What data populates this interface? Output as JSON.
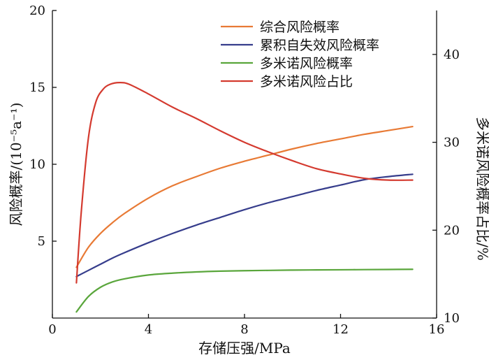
{
  "chart_data": {
    "type": "line",
    "title": "",
    "xlabel": "存储压强/MPa",
    "ylabel_left": "风险概率/(10⁻⁵a⁻¹)",
    "ylabel_right": "多米诺风险概率占比/%",
    "xlim": [
      0,
      16
    ],
    "ylim_left": [
      0,
      20
    ],
    "ylim_right": [
      10,
      45
    ],
    "x_ticks": [
      "0",
      "4",
      "8",
      "12",
      "16"
    ],
    "y_left_ticks": [
      "5",
      "10",
      "15",
      "20"
    ],
    "y_right_ticks": [
      "10",
      "20",
      "30",
      "40"
    ],
    "legend_position": "top-right",
    "grid": false,
    "series": [
      {
        "name": "综合风险概率",
        "axis": "left",
        "color": "#e87a35",
        "x": [
          1,
          1.5,
          2,
          2.5,
          3,
          4,
          5,
          6,
          7,
          8,
          9,
          10,
          11,
          12,
          13,
          14,
          15
        ],
        "values": [
          3.3,
          4.6,
          5.5,
          6.2,
          6.8,
          7.8,
          8.6,
          9.2,
          9.75,
          10.2,
          10.6,
          11.0,
          11.35,
          11.65,
          11.95,
          12.2,
          12.45
        ]
      },
      {
        "name": "累积自失效风险概率",
        "axis": "left",
        "color": "#363d8c",
        "x": [
          1,
          1.5,
          2,
          2.5,
          3,
          4,
          5,
          6,
          7,
          8,
          9,
          10,
          11,
          12,
          13,
          14,
          15
        ],
        "values": [
          2.7,
          3.1,
          3.5,
          3.9,
          4.25,
          4.9,
          5.5,
          6.05,
          6.55,
          7.05,
          7.5,
          7.9,
          8.3,
          8.65,
          9.0,
          9.2,
          9.35
        ]
      },
      {
        "name": "多米诺风险概率",
        "axis": "left",
        "color": "#5aa63c",
        "x": [
          1,
          1.5,
          2,
          2.5,
          3,
          4,
          5,
          6,
          7,
          8,
          9,
          10,
          11,
          12,
          13,
          14,
          15
        ],
        "values": [
          0.4,
          1.4,
          2.0,
          2.35,
          2.55,
          2.8,
          2.92,
          3.0,
          3.05,
          3.08,
          3.1,
          3.12,
          3.13,
          3.14,
          3.15,
          3.16,
          3.17
        ]
      },
      {
        "name": "多米诺风险占比",
        "axis": "right",
        "color": "#d43a2f",
        "x": [
          1,
          1.2,
          1.5,
          1.8,
          2.1,
          2.4,
          2.8,
          3.2,
          4,
          5,
          6,
          7,
          8,
          9,
          10,
          11,
          12,
          13,
          14,
          15
        ],
        "values": [
          14.0,
          22.0,
          30.5,
          34.5,
          36.0,
          36.6,
          36.8,
          36.6,
          35.5,
          34.0,
          32.7,
          31.3,
          30.0,
          28.9,
          27.9,
          27.0,
          26.4,
          25.9,
          25.7,
          25.7
        ]
      }
    ]
  }
}
